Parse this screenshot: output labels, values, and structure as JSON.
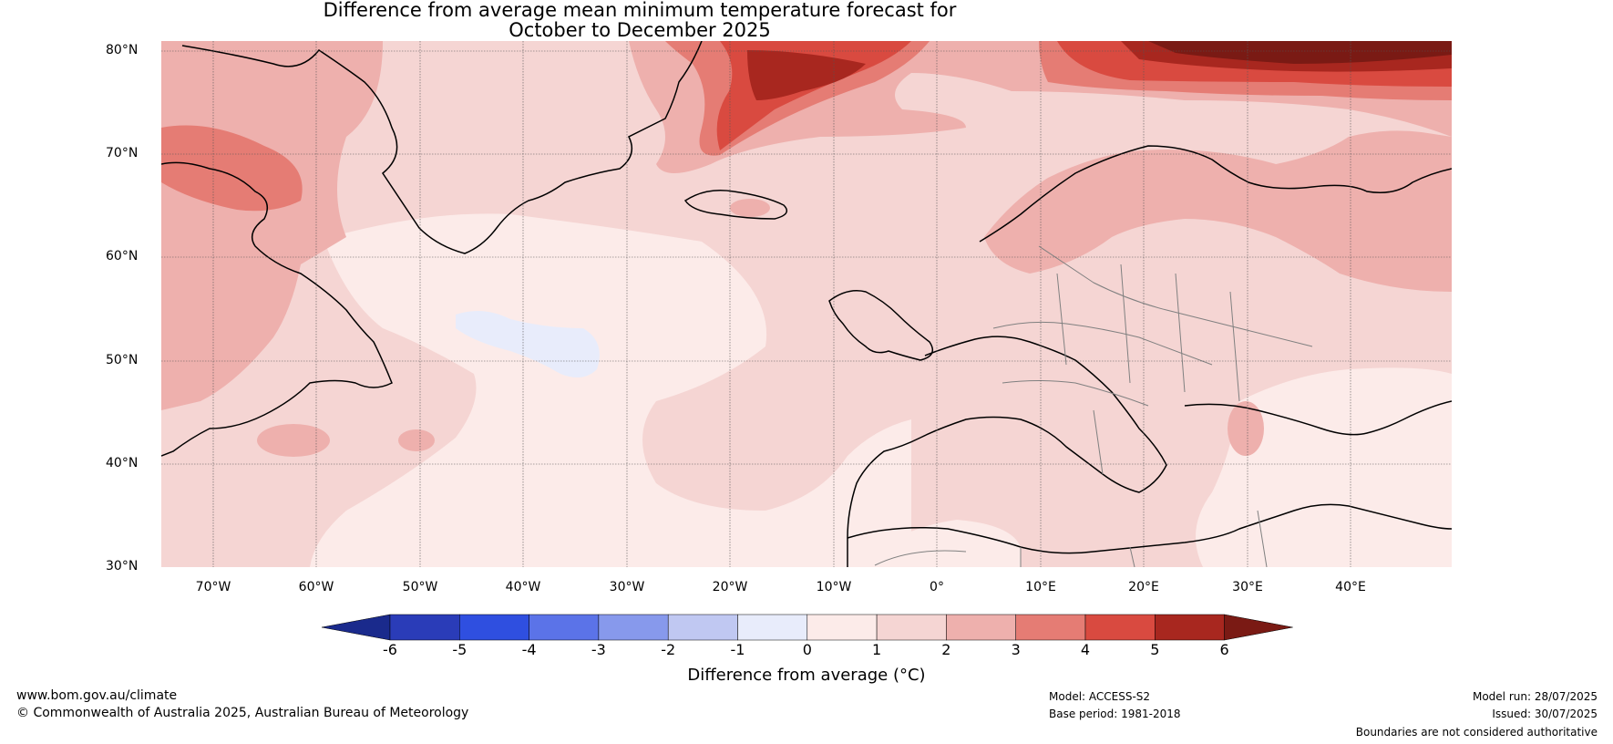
{
  "title": {
    "line1": "Difference from average mean minimum temperature forecast for",
    "line2": "October to December 2025"
  },
  "map": {
    "lat_labels": [
      "80°N",
      "70°N",
      "60°N",
      "50°N",
      "40°N",
      "30°N"
    ],
    "lon_labels": [
      "70°W",
      "60°W",
      "50°W",
      "40°W",
      "30°W",
      "20°W",
      "10°W",
      "0°",
      "10°E",
      "20°E",
      "30°E",
      "40°E"
    ]
  },
  "colorbar": {
    "ticks": [
      "-6",
      "-5",
      "-4",
      "-3",
      "-2",
      "-1",
      "0",
      "1",
      "2",
      "3",
      "4",
      "5",
      "6"
    ],
    "colors": [
      "#1a2a8c",
      "#2a3cb8",
      "#2f4fe0",
      "#5b73e8",
      "#8799ec",
      "#c0c8f2",
      "#e8ecfb",
      "#fcebe9",
      "#f5d5d3",
      "#eeb0ad",
      "#e57c74",
      "#d94a40",
      "#a8271f",
      "#7a1a14"
    ],
    "label": "Difference from average (°C)"
  },
  "footer": {
    "website": "www.bom.gov.au/climate",
    "copyright": "© Commonwealth of Australia 2025, Australian Bureau of Meteorology",
    "model": "Model: ACCESS-S2",
    "base_period": "Base period: 1981-2018",
    "model_run": "Model run: 28/07/2025",
    "issued": "Issued: 30/07/2025",
    "disclaimer": "Boundaries are not considered authoritative"
  }
}
